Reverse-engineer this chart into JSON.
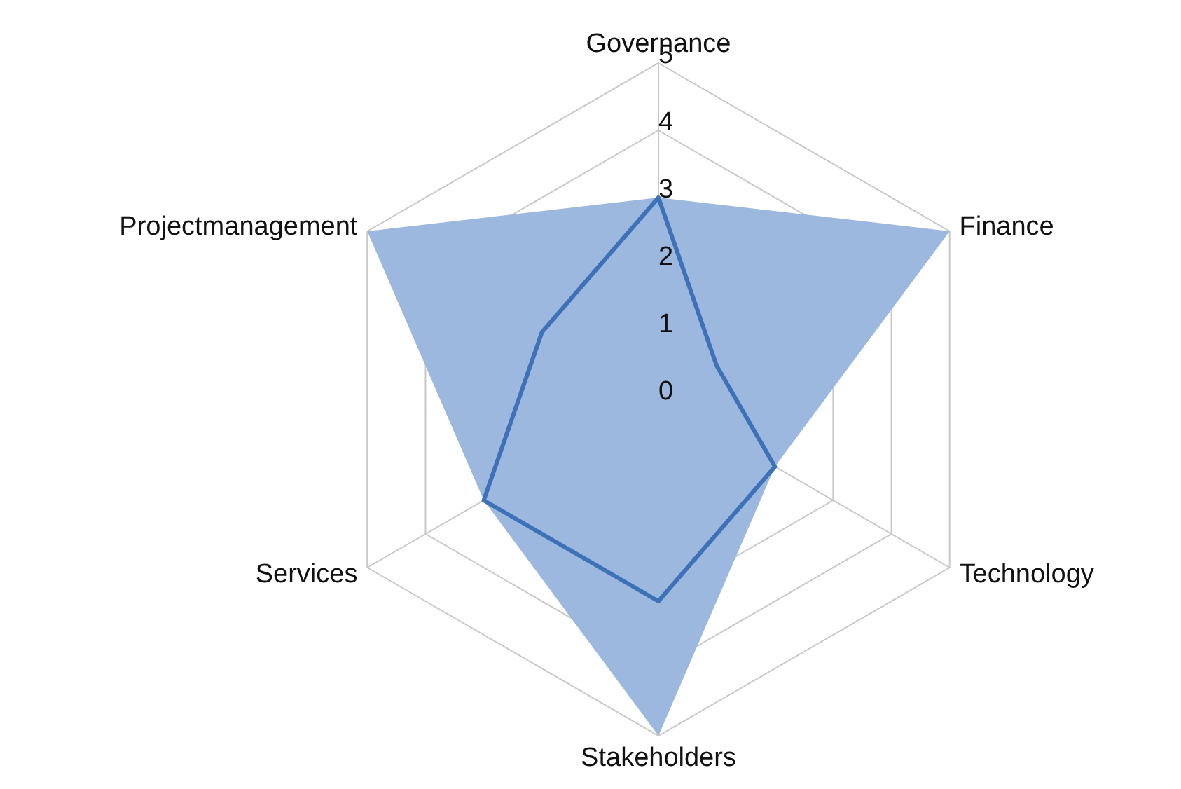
{
  "chart_data": {
    "type": "radar",
    "categories": [
      "Governance",
      "Finance",
      "Technology",
      "Stakeholders",
      "Services",
      "Projectmanagement"
    ],
    "series": [
      {
        "color": "#9db8de",
        "values": [
          3,
          5,
          2,
          5,
          3,
          5
        ]
      },
      {
        "color": "#3d72b8",
        "line_style": "solid",
        "values": [
          3,
          1,
          2,
          3,
          3,
          2
        ]
      }
    ],
    "ylim": [
      0,
      5
    ],
    "yticks": [
      0,
      1,
      2,
      3,
      4,
      5
    ],
    "grid": true
  }
}
